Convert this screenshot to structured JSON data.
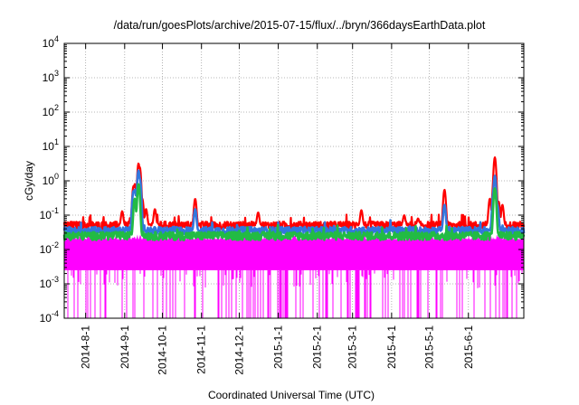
{
  "chart_data": {
    "type": "line",
    "title": "/data/run/goesPlots/archive/2015-07-15/flux/../bryn/366daysEarthData.plot",
    "xlabel": "Coordinated Universal Time (UTC)",
    "ylabel": "cGy/day",
    "yscale": "log",
    "ylim": [
      0.0001,
      10000
    ],
    "xlim": [
      "2014-07-15",
      "2015-07-15"
    ],
    "grid": true,
    "y_ticks": [
      {
        "value": 0.0001,
        "base": "10",
        "exp": "-4"
      },
      {
        "value": 0.001,
        "base": "10",
        "exp": "-3"
      },
      {
        "value": 0.01,
        "base": "10",
        "exp": "-2"
      },
      {
        "value": 0.1,
        "base": "10",
        "exp": "-1"
      },
      {
        "value": 1,
        "base": "10",
        "exp": "0"
      },
      {
        "value": 10,
        "base": "10",
        "exp": "1"
      },
      {
        "value": 100,
        "base": "10",
        "exp": "2"
      },
      {
        "value": 1000,
        "base": "10",
        "exp": "3"
      },
      {
        "value": 10000,
        "base": "10",
        "exp": "4"
      }
    ],
    "x_ticks": [
      "2014-8-1",
      "2014-9-1",
      "2014-10-1",
      "2014-11-1",
      "2014-12-1",
      "2015-1-1",
      "2015-2-1",
      "2015-3-1",
      "2015-4-1",
      "2015-5-1",
      "2015-6-1"
    ],
    "x_tick_dates": [
      "2014-08-01",
      "2014-09-01",
      "2014-10-01",
      "2014-11-01",
      "2014-12-01",
      "2015-01-01",
      "2015-02-01",
      "2015-03-01",
      "2015-04-01",
      "2015-05-01",
      "2015-06-01"
    ],
    "series": [
      {
        "color": "#ff0000",
        "baseline": 0.05,
        "events": [
          {
            "date": "2014-08-30",
            "value": 0.13
          },
          {
            "date": "2014-09-08",
            "value": 0.7
          },
          {
            "date": "2014-09-09",
            "value": 0.8
          },
          {
            "date": "2014-09-10",
            "value": 0.6
          },
          {
            "date": "2014-09-11",
            "value": 0.4
          },
          {
            "date": "2014-09-12",
            "value": 3.2
          },
          {
            "date": "2014-09-13",
            "value": 2.5
          },
          {
            "date": "2014-09-15",
            "value": 0.3
          },
          {
            "date": "2014-09-18",
            "value": 0.15
          },
          {
            "date": "2014-09-25",
            "value": 0.15
          },
          {
            "date": "2014-10-27",
            "value": 0.3
          },
          {
            "date": "2014-12-16",
            "value": 0.12
          },
          {
            "date": "2015-03-08",
            "value": 0.14
          },
          {
            "date": "2015-04-11",
            "value": 0.1
          },
          {
            "date": "2015-04-22",
            "value": 0.08
          },
          {
            "date": "2015-05-13",
            "value": 0.55
          },
          {
            "date": "2015-06-18",
            "value": 0.3
          },
          {
            "date": "2015-06-21",
            "value": 0.9
          },
          {
            "date": "2015-06-22",
            "value": 4.8
          },
          {
            "date": "2015-06-23",
            "value": 0.5
          },
          {
            "date": "2015-06-25",
            "value": 0.25
          },
          {
            "date": "2015-06-28",
            "value": 0.2
          }
        ]
      },
      {
        "color": "#3377dd",
        "baseline": 0.035,
        "events": [
          {
            "date": "2014-09-08",
            "value": 0.5
          },
          {
            "date": "2014-09-09",
            "value": 0.55
          },
          {
            "date": "2014-09-10",
            "value": 0.4
          },
          {
            "date": "2014-09-12",
            "value": 2.0
          },
          {
            "date": "2014-09-13",
            "value": 1.2
          },
          {
            "date": "2014-10-27",
            "value": 0.15
          },
          {
            "date": "2015-05-13",
            "value": 0.2
          },
          {
            "date": "2015-06-21",
            "value": 0.5
          },
          {
            "date": "2015-06-22",
            "value": 1.4
          },
          {
            "date": "2015-06-24",
            "value": 0.2
          }
        ]
      },
      {
        "color": "#22bb44",
        "baseline": 0.025,
        "events": [
          {
            "date": "2014-09-09",
            "value": 0.3
          },
          {
            "date": "2014-09-12",
            "value": 0.8
          },
          {
            "date": "2015-06-22",
            "value": 0.6
          }
        ]
      },
      {
        "color": "#ff00ff",
        "baseline": 0.0025,
        "upper": 0.02,
        "min": 0.0001
      }
    ]
  }
}
